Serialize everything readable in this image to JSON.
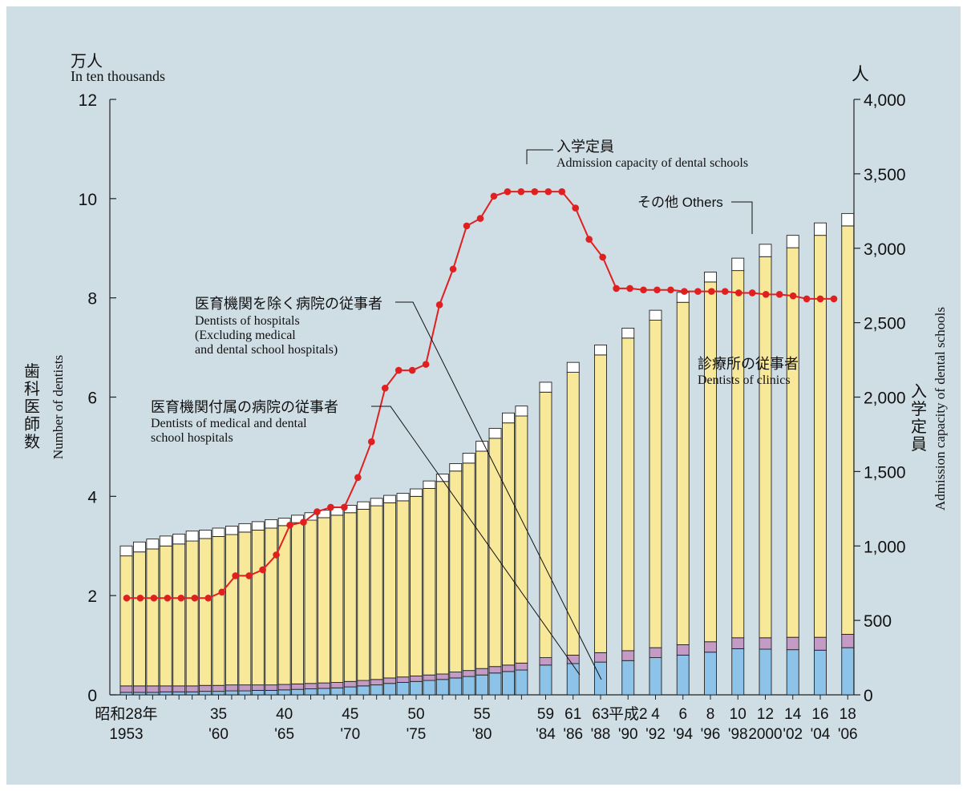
{
  "chart_data": {
    "type": "bar",
    "title": "",
    "left_axis": {
      "unit_jp": "万人",
      "unit_en": "In ten thousands",
      "label_jp_chars": [
        "歯",
        "科",
        "医",
        "師",
        "数"
      ],
      "label_en": "Number of dentists",
      "range": [
        0,
        12
      ],
      "ticks": [
        "0",
        "2",
        "4",
        "6",
        "8",
        "10",
        "12"
      ]
    },
    "right_axis": {
      "unit_jp": "人",
      "label_jp_chars": [
        "入",
        "学",
        "定",
        "員"
      ],
      "label_en": "Admission capacity of dental schools",
      "range": [
        0,
        4000
      ],
      "ticks": [
        "0",
        "500",
        "1,000",
        "1,500",
        "2,000",
        "2,500",
        "3,000",
        "3,500",
        "4,000"
      ]
    },
    "x_labels": [
      {
        "i": 0,
        "top": "昭和28年",
        "bottom": "1953"
      },
      {
        "i": 7,
        "top": "35",
        "bottom": "'60"
      },
      {
        "i": 12,
        "top": "40",
        "bottom": "'65"
      },
      {
        "i": 17,
        "top": "45",
        "bottom": "'70"
      },
      {
        "i": 22,
        "top": "50",
        "bottom": "'75"
      },
      {
        "i": 27,
        "top": "55",
        "bottom": "'80"
      },
      {
        "i": 31,
        "top": "59",
        "bottom": "'84"
      },
      {
        "i": 32,
        "top": "61",
        "bottom": "'86"
      },
      {
        "i": 33,
        "top": "63",
        "bottom": "'88"
      },
      {
        "i": 34,
        "top": "平成2",
        "bottom": "'90"
      },
      {
        "i": 35,
        "top": "4",
        "bottom": "'92"
      },
      {
        "i": 36,
        "top": "6",
        "bottom": "'94"
      },
      {
        "i": 37,
        "top": "8",
        "bottom": "'96"
      },
      {
        "i": 38,
        "top": "10",
        "bottom": "'98"
      },
      {
        "i": 39,
        "top": "12",
        "bottom": "2000"
      },
      {
        "i": 40,
        "top": "14",
        "bottom": "'02"
      },
      {
        "i": 41,
        "top": "16",
        "bottom": "'04"
      },
      {
        "i": 42,
        "top": "18",
        "bottom": "'06"
      }
    ],
    "series": [
      {
        "name": "医育機関付属の病院の従事者 Dentists of medical and dental school hospitals",
        "color": "#8dc3e9",
        "values": [
          0.05,
          0.05,
          0.05,
          0.06,
          0.06,
          0.06,
          0.07,
          0.07,
          0.08,
          0.08,
          0.09,
          0.09,
          0.1,
          0.11,
          0.12,
          0.13,
          0.14,
          0.16,
          0.18,
          0.2,
          0.23,
          0.25,
          0.27,
          0.29,
          0.31,
          0.34,
          0.37,
          0.4,
          0.44,
          0.47,
          0.5,
          0.6,
          0.63,
          0.66,
          0.69,
          0.75,
          0.8,
          0.86,
          0.93,
          0.92,
          0.91,
          0.9,
          0.95
        ]
      },
      {
        "name": "医育機関を除く病院の従事者 Dentists of hospitals (Excluding medical and dental school hospitals)",
        "color": "#c49bc5",
        "values": [
          0.13,
          0.13,
          0.13,
          0.12,
          0.12,
          0.12,
          0.12,
          0.12,
          0.12,
          0.12,
          0.11,
          0.11,
          0.11,
          0.11,
          0.11,
          0.11,
          0.11,
          0.11,
          0.11,
          0.11,
          0.11,
          0.11,
          0.11,
          0.11,
          0.11,
          0.12,
          0.12,
          0.13,
          0.13,
          0.13,
          0.14,
          0.15,
          0.17,
          0.19,
          0.2,
          0.2,
          0.21,
          0.21,
          0.22,
          0.23,
          0.25,
          0.26,
          0.27
        ]
      },
      {
        "name": "診療所の従事者 Dentists of clinics",
        "color": "#f8e89a",
        "values": [
          2.62,
          2.7,
          2.76,
          2.82,
          2.86,
          2.92,
          2.96,
          3.0,
          3.03,
          3.08,
          3.12,
          3.16,
          3.2,
          3.25,
          3.29,
          3.33,
          3.37,
          3.4,
          3.45,
          3.5,
          3.53,
          3.55,
          3.62,
          3.76,
          3.88,
          4.05,
          4.18,
          4.38,
          4.6,
          4.88,
          4.98,
          5.35,
          5.7,
          6.0,
          6.3,
          6.6,
          6.9,
          7.25,
          7.4,
          7.68,
          7.85,
          8.1,
          8.23
        ]
      },
      {
        "name": "その他 Others",
        "color": "#ffffff",
        "values": [
          0.2,
          0.2,
          0.2,
          0.2,
          0.2,
          0.2,
          0.17,
          0.17,
          0.17,
          0.17,
          0.17,
          0.17,
          0.15,
          0.15,
          0.15,
          0.15,
          0.15,
          0.15,
          0.15,
          0.15,
          0.15,
          0.15,
          0.15,
          0.15,
          0.15,
          0.15,
          0.2,
          0.2,
          0.2,
          0.2,
          0.2,
          0.2,
          0.2,
          0.2,
          0.2,
          0.2,
          0.2,
          0.2,
          0.25,
          0.25,
          0.25,
          0.25,
          0.25
        ]
      }
    ],
    "line_series": {
      "name": "入学定員 Admission capacity of dental schools",
      "color": "#e02020",
      "values": [
        650,
        650,
        650,
        650,
        650,
        650,
        650,
        690,
        800,
        800,
        840,
        940,
        1140,
        1160,
        1230,
        1260,
        1260,
        1460,
        1700,
        2060,
        2180,
        2180,
        2220,
        2620,
        2860,
        3150,
        3200,
        3350,
        3380,
        3380,
        3380,
        3380,
        3380,
        3270,
        3060,
        2940,
        2730,
        2730,
        2720,
        2720,
        2720,
        2710,
        2710,
        2710,
        2710,
        2700,
        2700,
        2690,
        2690,
        2680,
        2660,
        2660,
        2660
      ]
    },
    "annotations": [
      {
        "jp": "入学定員",
        "en": "Admission capacity of dental schools"
      },
      {
        "jp": "その他 Others"
      },
      {
        "jp": "医育機関を除く病院の従事者",
        "en": [
          "Dentists of hospitals",
          "(Excluding medical",
          " and dental school hospitals)"
        ]
      },
      {
        "jp": "医育機関付属の病院の従事者",
        "en": [
          "Dentists of medical and dental",
          "school hospitals"
        ]
      },
      {
        "jp": "診療所の従事者",
        "en": "Dentists of clinics"
      }
    ]
  }
}
